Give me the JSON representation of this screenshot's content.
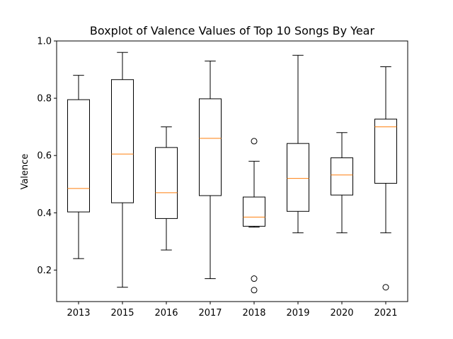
{
  "chart_data": {
    "type": "boxplot",
    "title": "Boxplot of Valence Values of Top 10 Songs By Year",
    "xlabel": "",
    "ylabel": "Valence",
    "ylim": [
      0.09,
      1.0
    ],
    "yticks": [
      0.2,
      0.4,
      0.6,
      0.8,
      1.0
    ],
    "ytick_labels": [
      "0.2",
      "0.4",
      "0.6",
      "0.8",
      "1.0"
    ],
    "grid": false,
    "categories": [
      "2013",
      "2015",
      "2016",
      "2017",
      "2018",
      "2019",
      "2020",
      "2021"
    ],
    "series": [
      {
        "name": "2013",
        "whisker_low": 0.24,
        "q1": 0.403,
        "median": 0.485,
        "q3": 0.795,
        "whisker_high": 0.88,
        "outliers": []
      },
      {
        "name": "2015",
        "whisker_low": 0.14,
        "q1": 0.435,
        "median": 0.605,
        "q3": 0.865,
        "whisker_high": 0.96,
        "outliers": []
      },
      {
        "name": "2016",
        "whisker_low": 0.27,
        "q1": 0.38,
        "median": 0.47,
        "q3": 0.628,
        "whisker_high": 0.7,
        "outliers": []
      },
      {
        "name": "2017",
        "whisker_low": 0.17,
        "q1": 0.46,
        "median": 0.66,
        "q3": 0.798,
        "whisker_high": 0.93,
        "outliers": []
      },
      {
        "name": "2018",
        "whisker_low": 0.35,
        "q1": 0.353,
        "median": 0.385,
        "q3": 0.455,
        "whisker_high": 0.58,
        "outliers": [
          0.65,
          0.17,
          0.13
        ]
      },
      {
        "name": "2019",
        "whisker_low": 0.33,
        "q1": 0.405,
        "median": 0.52,
        "q3": 0.642,
        "whisker_high": 0.95,
        "outliers": []
      },
      {
        "name": "2020",
        "whisker_low": 0.33,
        "q1": 0.462,
        "median": 0.532,
        "q3": 0.592,
        "whisker_high": 0.68,
        "outliers": []
      },
      {
        "name": "2021",
        "whisker_low": 0.33,
        "q1": 0.503,
        "median": 0.7,
        "q3": 0.727,
        "whisker_high": 0.91,
        "outliers": [
          0.14
        ]
      }
    ],
    "colors": {
      "box": "#000000",
      "median": "#ff7f0e",
      "outlier": "#000000"
    }
  }
}
